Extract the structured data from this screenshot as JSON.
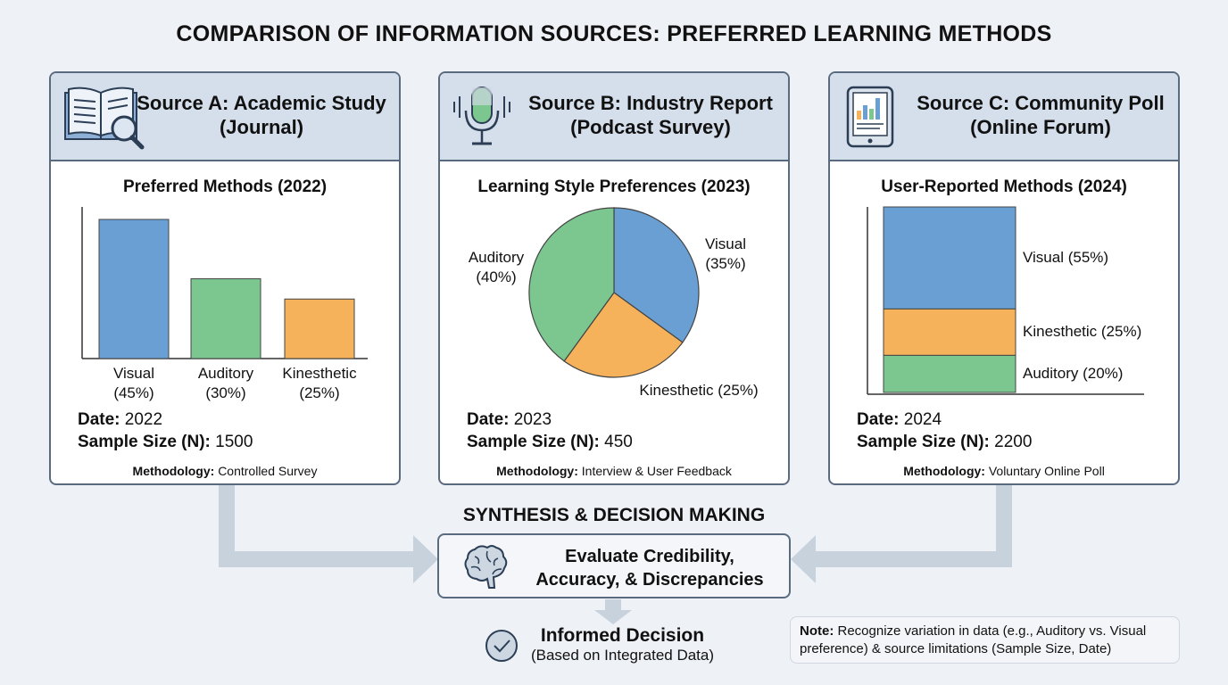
{
  "title": "COMPARISON OF INFORMATION SOURCES: PREFERRED LEARNING METHODS",
  "colors": {
    "visual": "#6a9fd4",
    "auditory": "#7cc68f",
    "kinesthetic": "#f6b25a",
    "header": "#d5dfeb",
    "border": "#5a6b80",
    "arrow": "#c8d2dd"
  },
  "sources": [
    {
      "icon": "book-magnifier-icon",
      "title_line1": "Source A: Academic Study",
      "title_line2": "(Journal)",
      "chart_title": "Preferred Methods (2022)",
      "date_label": "Date:",
      "date": "2022",
      "sample_label": "Sample Size (N):",
      "sample": "1500",
      "method_label": "Methodology:",
      "method": "Controlled Survey"
    },
    {
      "icon": "microphone-icon",
      "title_line1": "Source B: Industry Report",
      "title_line2": "(Podcast Survey)",
      "chart_title": "Learning Style Preferences (2023)",
      "date_label": "Date:",
      "date": "2023",
      "sample_label": "Sample Size (N):",
      "sample": "450",
      "method_label": "Methodology:",
      "method": "Interview & User Feedback"
    },
    {
      "icon": "tablet-chart-icon",
      "title_line1": "Source C: Community Poll",
      "title_line2": "(Online Forum)",
      "chart_title": "User-Reported Methods (2024)",
      "date_label": "Date:",
      "date": "2024",
      "sample_label": "Sample Size (N):",
      "sample": "2200",
      "method_label": "Methodology:",
      "method": "Voluntary Online Poll"
    }
  ],
  "chart_data": [
    {
      "type": "bar",
      "title": "Preferred Methods (2022)",
      "categories": [
        "Visual",
        "Auditory",
        "Kinesthetic"
      ],
      "values": [
        45,
        30,
        25
      ],
      "labels": [
        "(45%)",
        "(30%)",
        "(25%)"
      ]
    },
    {
      "type": "pie",
      "title": "Learning Style Preferences (2023)",
      "categories": [
        "Visual",
        "Kinesthetic",
        "Auditory"
      ],
      "values": [
        35,
        25,
        40
      ],
      "labels": [
        "(35%)",
        "Kinesthetic (25%)",
        "(40%)"
      ]
    },
    {
      "type": "bar",
      "stacked": true,
      "title": "User-Reported Methods (2024)",
      "categories": [
        "Visual",
        "Kinesthetic",
        "Auditory"
      ],
      "values": [
        55,
        25,
        20
      ],
      "labels": [
        "Visual (55%)",
        "Kinesthetic (25%)",
        "Auditory (20%)"
      ]
    }
  ],
  "synthesis": {
    "heading": "SYNTHESIS & DECISION MAKING",
    "eval_line1": "Evaluate Credibility,",
    "eval_line2": "Accuracy, & Discrepancies",
    "decision_title": "Informed Decision",
    "decision_sub": "(Based on Integrated Data)"
  },
  "note": {
    "label": "Note:",
    "text": " Recognize variation in data (e.g., Auditory vs. Visual preference) & source limitations (Sample Size, Date)"
  }
}
